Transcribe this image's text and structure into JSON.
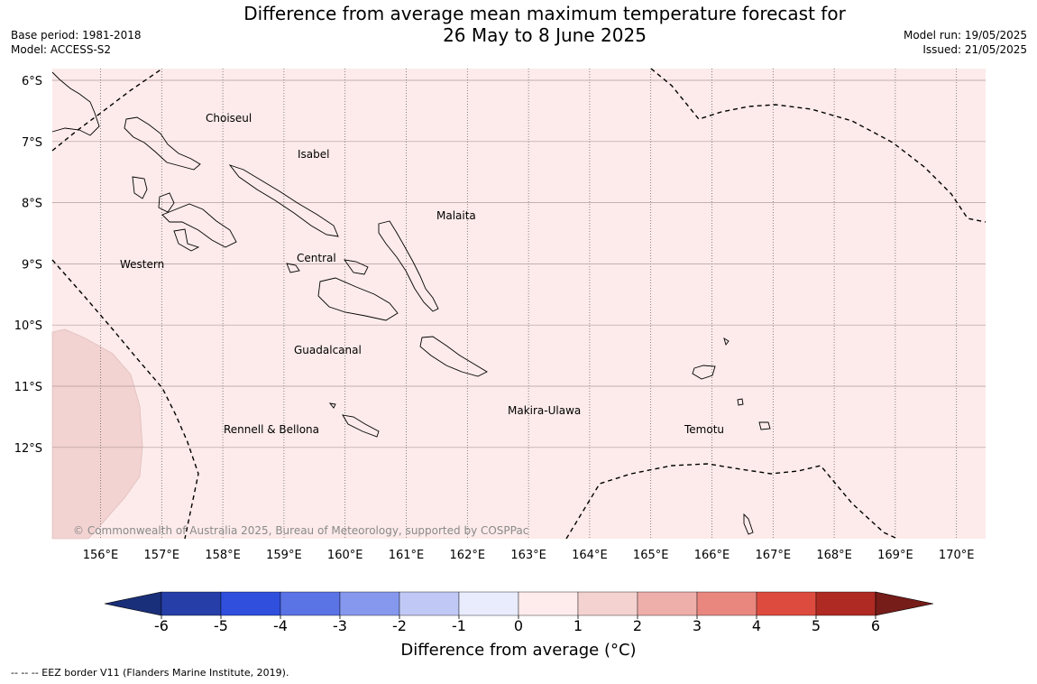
{
  "title": {
    "line1": "Difference from average mean maximum temperature forecast for",
    "line2": "26 May to 8 June 2025"
  },
  "meta_left": {
    "base_period": "Base period: 1981-2018",
    "model": "Model: ACCESS-S2"
  },
  "meta_right": {
    "model_run": "Model run: 19/05/2025",
    "issued": "Issued: 21/05/2025"
  },
  "map": {
    "lon_ticks": [
      "156°E",
      "157°E",
      "158°E",
      "159°E",
      "160°E",
      "161°E",
      "162°E",
      "163°E",
      "164°E",
      "165°E",
      "166°E",
      "167°E",
      "168°E",
      "169°E",
      "170°E"
    ],
    "lat_ticks": [
      "6°S",
      "7°S",
      "8°S",
      "9°S",
      "10°S",
      "11°S",
      "12°S"
    ],
    "regions": [
      "Choiseul",
      "Isabel",
      "Malaita",
      "Western",
      "Central",
      "Guadalcanal",
      "Makira-Ulawa",
      "Rennell & Bellona",
      "Temotu"
    ],
    "copyright": "© Commonwealth of Australia 2025, Bureau of Meteorology, supported by COSPPac",
    "colors": {
      "background_anomaly": "#fcebea",
      "warm_patch": "#f2d3d2"
    }
  },
  "colorbar": {
    "ticks": [
      "-6",
      "-5",
      "-4",
      "-3",
      "-2",
      "-1",
      "0",
      "1",
      "2",
      "3",
      "4",
      "5",
      "6"
    ],
    "colors": [
      "#263fa8",
      "#2f4fdc",
      "#5a74e6",
      "#8698ee",
      "#c0c9f5",
      "#e9ecfc",
      "#fdeceb",
      "#f4d2d0",
      "#eeaeaa",
      "#e9877f",
      "#dd4b3f",
      "#ae2a22"
    ],
    "under_color": "#1a2f7a",
    "over_color": "#761c19",
    "label": "Difference from average (°C)"
  },
  "footnote": "--  --  -- EEZ border V11 (Flanders Marine Institute, 2019)."
}
